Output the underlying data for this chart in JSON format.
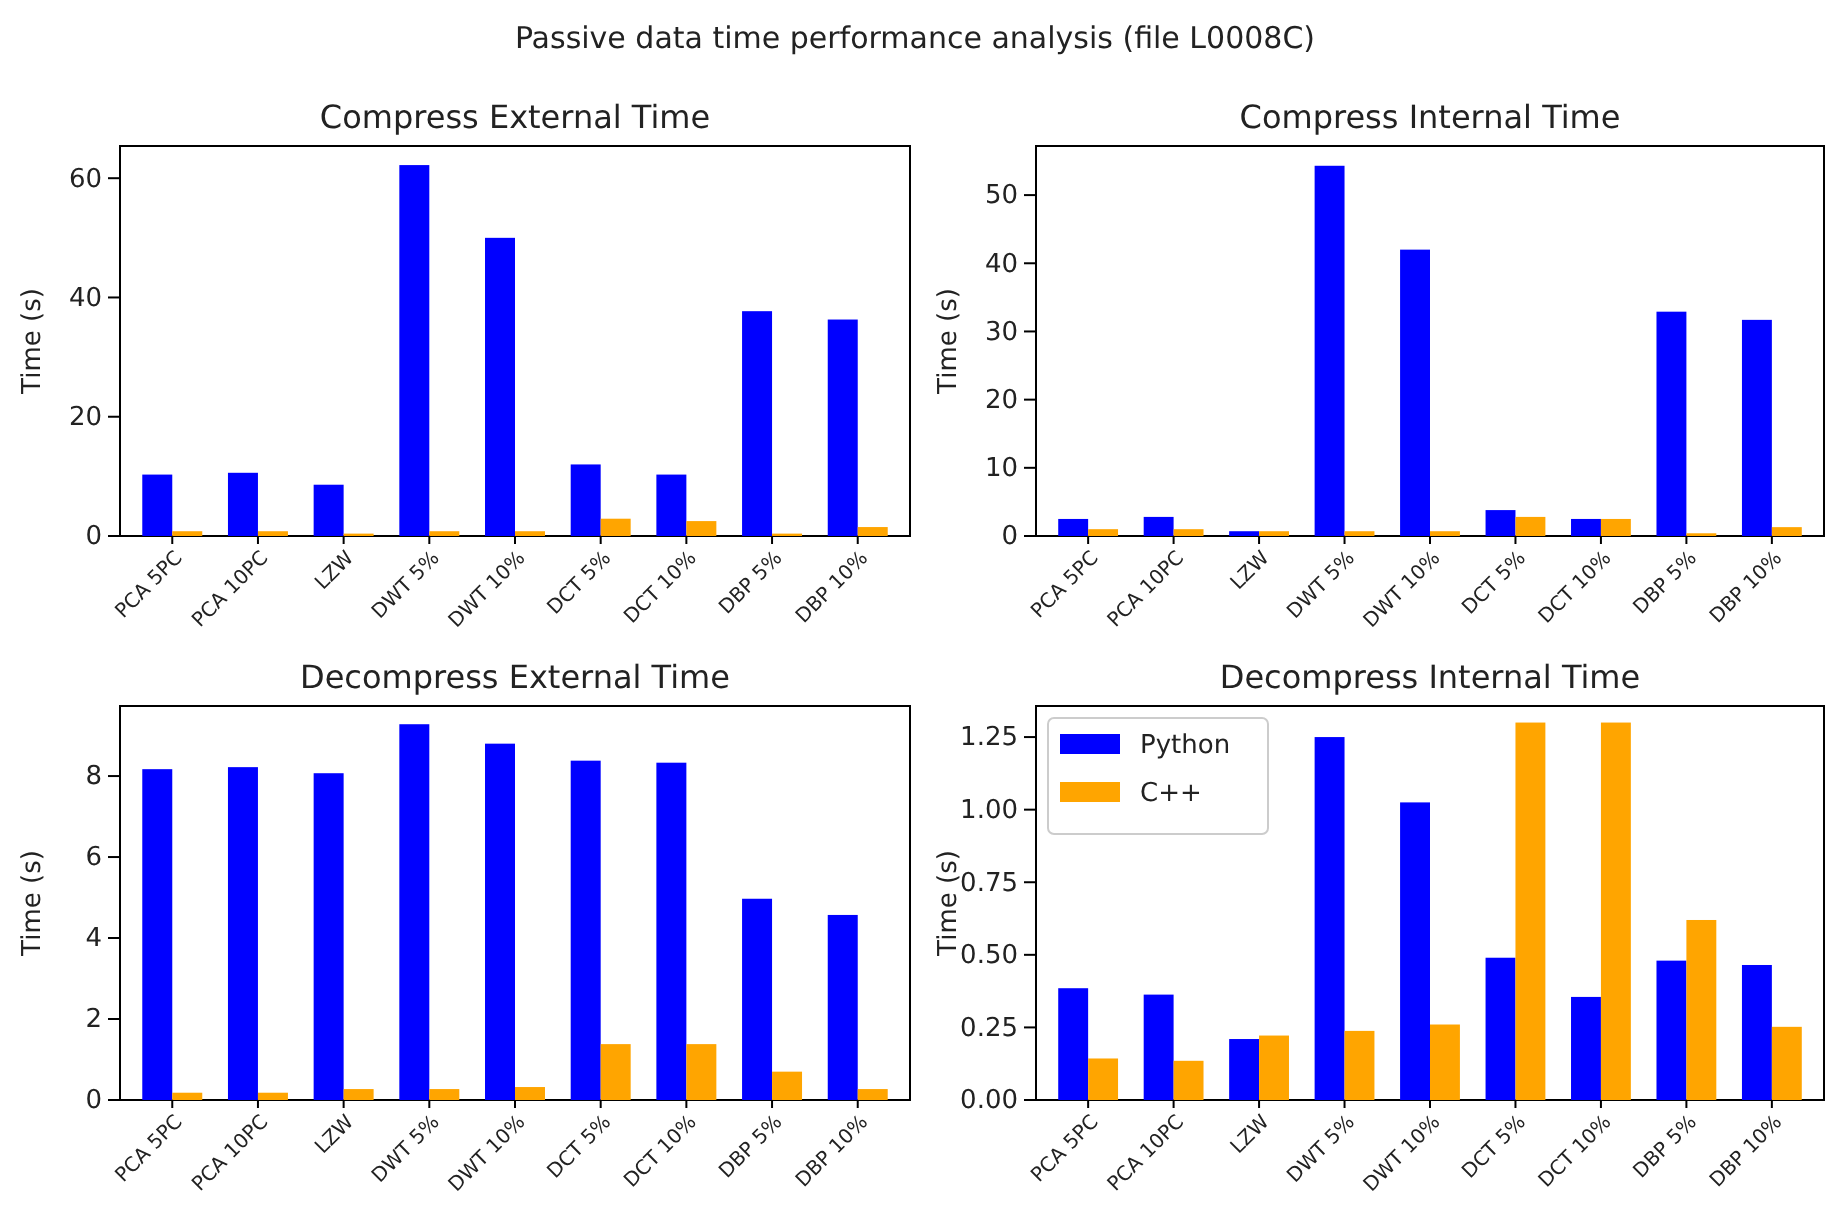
{
  "chart_data": [
    {
      "type": "bar",
      "title": "Compress External Time",
      "ylabel": "Time (s)",
      "annotations": [
        "Passive data time performance analysis (file L0008C)"
      ],
      "categories": [
        "PCA 5PC",
        "PCA 10PC",
        "LZW",
        "DWT 5%",
        "DWT 10%",
        "DCT 5%",
        "DCT 10%",
        "DBP 5%",
        "DBP 10%"
      ],
      "ylim": [
        0,
        65.4
      ],
      "yticks": [
        0,
        20,
        40,
        60
      ],
      "series": [
        {
          "color": "#0000ff",
          "values": [
            10.3,
            10.6,
            8.6,
            62.2,
            50.0,
            12.0,
            10.3,
            37.7,
            36.3
          ]
        },
        {
          "color": "#ffa500",
          "values": [
            0.8,
            0.8,
            0.4,
            0.8,
            0.8,
            2.9,
            2.5,
            0.4,
            1.5
          ]
        }
      ]
    },
    {
      "type": "bar",
      "title": "Compress Internal Time",
      "ylabel": "Time (s)",
      "categories": [
        "PCA 5PC",
        "PCA 10PC",
        "LZW",
        "DWT 5%",
        "DWT 10%",
        "DCT 5%",
        "DCT 10%",
        "DBP 5%",
        "DBP 10%"
      ],
      "ylim": [
        0,
        57.2
      ],
      "yticks": [
        0,
        10,
        20,
        30,
        40,
        50
      ],
      "series": [
        {
          "color": "#0000ff",
          "values": [
            2.5,
            2.8,
            0.7,
            54.3,
            42.0,
            3.8,
            2.5,
            32.9,
            31.7
          ]
        },
        {
          "color": "#ffa500",
          "values": [
            1.0,
            1.0,
            0.7,
            0.7,
            0.7,
            2.8,
            2.5,
            0.4,
            1.3
          ]
        }
      ]
    },
    {
      "type": "bar",
      "title": "Decompress External Time",
      "ylabel": "Time (s)",
      "categories": [
        "PCA 5PC",
        "PCA 10PC",
        "LZW",
        "DWT 5%",
        "DWT 10%",
        "DCT 5%",
        "DCT 10%",
        "DBP 5%",
        "DBP 10%"
      ],
      "ylim": [
        0,
        9.73
      ],
      "yticks": [
        0,
        2,
        4,
        6,
        8
      ],
      "series": [
        {
          "color": "#0000ff",
          "values": [
            8.17,
            8.22,
            8.07,
            9.28,
            8.8,
            8.38,
            8.33,
            4.97,
            4.57
          ]
        },
        {
          "color": "#ffa500",
          "values": [
            0.18,
            0.18,
            0.27,
            0.27,
            0.32,
            1.38,
            1.38,
            0.7,
            0.27
          ]
        }
      ]
    },
    {
      "type": "bar",
      "title": "Decompress Internal Time",
      "ylabel": "Time (s)",
      "categories": [
        "PCA 5PC",
        "PCA 10PC",
        "LZW",
        "DWT 5%",
        "DWT 10%",
        "DCT 5%",
        "DCT 10%",
        "DBP 5%",
        "DBP 10%"
      ],
      "ylim": [
        0,
        1.357
      ],
      "yticks": [
        {
          "value": 0,
          "label": "0.00"
        },
        {
          "value": 0.25,
          "label": "0.25"
        },
        {
          "value": 0.5,
          "label": "0.50"
        },
        {
          "value": 0.75,
          "label": "0.75"
        },
        {
          "value": 1,
          "label": "1.00"
        },
        {
          "value": 1.25,
          "label": "1.25"
        }
      ],
      "legend": "top left",
      "series": [
        {
          "name": "Python",
          "color": "#0000ff",
          "values": [
            0.385,
            0.363,
            0.21,
            1.25,
            1.025,
            0.49,
            0.355,
            0.48,
            0.465
          ]
        },
        {
          "name": "C++",
          "color": "#ffa500",
          "values": [
            0.143,
            0.135,
            0.222,
            0.238,
            0.26,
            1.3,
            1.3,
            0.62,
            0.252
          ]
        }
      ]
    }
  ]
}
